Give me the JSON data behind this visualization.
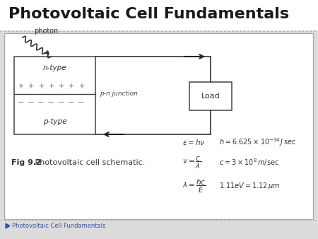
{
  "title": "Photovoltaic Cell Fundamentals",
  "title_fontsize": 16,
  "title_color": "#1a1a1a",
  "footer_text": "Photovoltaic Cell Fundamentals",
  "n_type_label": "n-type",
  "p_type_label": "p-type",
  "pn_label": "p-n junction",
  "load_label": "Load",
  "photon_label": "photon",
  "fig_caption_bold": "Fig 9.2",
  "fig_caption_normal": " Photovoltaic cell schematic.",
  "eq1_left": "$\\varepsilon = h\\nu$",
  "eq1_right": "$h = 6.625 \\times 10^{-34}\\,J\\,\\mathrm{sec}$",
  "eq2_left": "$v = \\dfrac{c}{\\lambda}$",
  "eq2_right": "$c = 3 \\times 10^{8}\\,m / \\mathrm{sec}$",
  "eq3_left": "$\\lambda = \\dfrac{hc}{E}$",
  "eq3_right": "$1.11eV = 1.12\\,\\mu m$"
}
